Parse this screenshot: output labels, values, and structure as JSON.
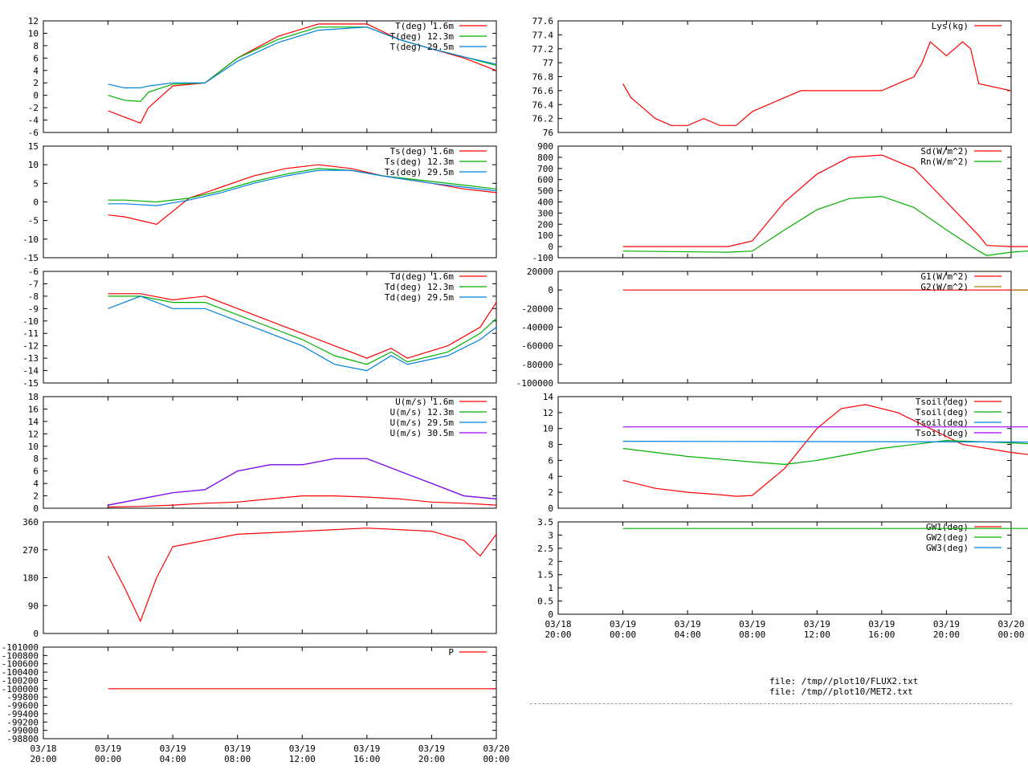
{
  "files": [
    "file: /tmp//plot10/FLUX2.txt",
    "file: /tmp//plot10/MET2.txt"
  ],
  "colors": {
    "red": "#ff0000",
    "green": "#00b000",
    "blue": "#0080e0",
    "purple": "#a000ff",
    "olive": "#a08000"
  },
  "xaxis": {
    "range": [
      "03/18 20:00",
      "03/20 00:00"
    ],
    "ticks": [
      [
        "03/18",
        "20:00"
      ],
      [
        "03/19",
        "00:00"
      ],
      [
        "03/19",
        "04:00"
      ],
      [
        "03/19",
        "08:00"
      ],
      [
        "03/19",
        "12:00"
      ],
      [
        "03/19",
        "16:00"
      ],
      [
        "03/19",
        "20:00"
      ],
      [
        "03/20",
        "00:00"
      ]
    ]
  },
  "chart_data": [
    {
      "type": "line",
      "title": "",
      "xlabel": "",
      "ylabel": "",
      "ylim": [
        -6,
        12
      ],
      "yticks": [
        "-6",
        "-4",
        "-2",
        "0",
        "2",
        "4",
        "6",
        "8",
        "10",
        "12"
      ],
      "legend": "top-right",
      "grid": false,
      "series": [
        {
          "name": "T(deg)  1.6m",
          "color": "#ff0000",
          "x": [
            4,
            5,
            6,
            6.5,
            8,
            10,
            12,
            14.5,
            17,
            20,
            22,
            24,
            26,
            28
          ],
          "y": [
            -2.5,
            -3.5,
            -4.5,
            -2,
            1.5,
            2,
            6,
            9.5,
            11.5,
            11.5,
            9,
            7.5,
            6,
            4
          ]
        },
        {
          "name": "T(deg) 12.3m",
          "color": "#00b000",
          "x": [
            4,
            5,
            6,
            6.5,
            8,
            10,
            12,
            14.5,
            17,
            20,
            22,
            24,
            26,
            28
          ],
          "y": [
            0,
            -0.8,
            -1,
            0.5,
            1.8,
            2,
            6,
            9,
            11,
            11,
            9,
            7.5,
            6.2,
            4.8
          ]
        },
        {
          "name": "T(deg) 29.5m",
          "color": "#0080e0",
          "x": [
            4,
            5,
            6,
            6.5,
            8,
            10,
            12,
            14.5,
            17,
            20,
            22,
            24,
            26,
            28
          ],
          "y": [
            1.8,
            1.2,
            1.2,
            1.5,
            2,
            2,
            5.5,
            8.5,
            10.5,
            11,
            9,
            7.5,
            6.2,
            5
          ]
        }
      ]
    },
    {
      "type": "line",
      "title": "",
      "xlabel": "",
      "ylabel": "",
      "ylim": [
        -15,
        15
      ],
      "yticks": [
        "-15",
        "-10",
        "-5",
        "0",
        "5",
        "10",
        "15"
      ],
      "legend": "top-right",
      "grid": false,
      "series": [
        {
          "name": "Ts(deg)  1.6m",
          "color": "#ff0000",
          "x": [
            4,
            5,
            7,
            9,
            11,
            13,
            15,
            17,
            19,
            21,
            24,
            26,
            28
          ],
          "y": [
            -3.5,
            -4,
            -6,
            1,
            4,
            7,
            9,
            10,
            9,
            7,
            5,
            3.5,
            2.5
          ]
        },
        {
          "name": "Ts(deg) 12.3m",
          "color": "#00b000",
          "x": [
            4,
            5,
            7,
            9,
            11,
            13,
            15,
            17,
            19,
            21,
            24,
            26,
            28
          ],
          "y": [
            0.5,
            0.5,
            0,
            1,
            3,
            5.5,
            7.5,
            9,
            8.5,
            7,
            5.5,
            4.5,
            3.5
          ]
        },
        {
          "name": "Ts(deg) 29.5m",
          "color": "#0080e0",
          "x": [
            4,
            5,
            7,
            9,
            11,
            13,
            15,
            17,
            19,
            21,
            24,
            26,
            28
          ],
          "y": [
            -0.5,
            -0.5,
            -1,
            0.5,
            2.5,
            5,
            7,
            8.5,
            8.5,
            7,
            5,
            4,
            3
          ]
        }
      ]
    },
    {
      "type": "line",
      "title": "",
      "xlabel": "",
      "ylabel": "",
      "ylim": [
        -15,
        -6
      ],
      "yticks": [
        "-15",
        "-14",
        "-13",
        "-12",
        "-11",
        "-10",
        "-9",
        "-8",
        "-7",
        "-6"
      ],
      "legend": "top-right",
      "grid": false,
      "series": [
        {
          "name": "Td(deg)  1.6m",
          "color": "#ff0000",
          "x": [
            4,
            6,
            8,
            10,
            12,
            14,
            16,
            18,
            20,
            21.5,
            22.5,
            25,
            27,
            28
          ],
          "y": [
            -7.8,
            -7.8,
            -8.3,
            -8,
            -9,
            -10,
            -11,
            -12,
            -13,
            -12.2,
            -13,
            -12,
            -10.5,
            -8.5
          ]
        },
        {
          "name": "Td(deg) 12.3m",
          "color": "#00b000",
          "x": [
            4,
            6,
            8,
            10,
            12,
            14,
            16,
            18,
            20,
            21.5,
            22.5,
            25,
            27,
            28
          ],
          "y": [
            -8,
            -8,
            -8.5,
            -8.5,
            -9.5,
            -10.5,
            -11.5,
            -12.8,
            -13.5,
            -12.5,
            -13.3,
            -12.5,
            -11,
            -9.8
          ]
        },
        {
          "name": "Td(deg) 29.5m",
          "color": "#0080e0",
          "x": [
            4,
            6,
            8,
            10,
            12,
            14,
            16,
            18,
            20,
            21.5,
            22.5,
            25,
            27,
            28
          ],
          "y": [
            -9,
            -8,
            -9,
            -9,
            -10,
            -11,
            -12,
            -13.5,
            -14,
            -12.8,
            -13.5,
            -12.8,
            -11.5,
            -10.5
          ]
        }
      ]
    },
    {
      "type": "line",
      "title": "",
      "xlabel": "",
      "ylabel": "",
      "ylim": [
        0,
        18
      ],
      "yticks": [
        "0",
        "2",
        "4",
        "6",
        "8",
        "10",
        "12",
        "14",
        "16",
        "18"
      ],
      "legend": "top-right",
      "grid": false,
      "series": [
        {
          "name": "U(m/s)  1.6m",
          "color": "#ff0000",
          "x": [
            4,
            6,
            8,
            10,
            12,
            14,
            16,
            18,
            20,
            22,
            24,
            26,
            28
          ],
          "y": [
            0.2,
            0.3,
            0.5,
            0.8,
            1,
            1.5,
            2,
            2,
            1.8,
            1.5,
            1,
            0.8,
            0.5
          ]
        },
        {
          "name": "U(m/s) 12.3m",
          "color": "#00b000",
          "x": [
            4,
            6,
            8,
            10,
            12,
            14,
            16,
            18,
            20,
            22,
            24,
            26,
            28
          ],
          "y": [
            0.5,
            1.5,
            2.5,
            3,
            6,
            7,
            7,
            8,
            8,
            6,
            4,
            2,
            1.5
          ]
        },
        {
          "name": "U(m/s) 29.5m",
          "color": "#0080e0",
          "x": [
            4,
            6,
            8,
            10,
            12,
            14,
            16,
            18,
            20,
            22,
            24,
            26,
            28
          ],
          "y": [
            0.5,
            1.5,
            2.5,
            3,
            6,
            7,
            7,
            8,
            8,
            6,
            4,
            2,
            1.5
          ]
        },
        {
          "name": "U(m/s) 30.5m",
          "color": "#a000ff",
          "x": [
            4,
            6,
            8,
            10,
            12,
            14,
            16,
            18,
            20,
            22,
            24,
            26,
            28
          ],
          "y": [
            0.5,
            1.5,
            2.5,
            3,
            6,
            7,
            7,
            8,
            8,
            6,
            4,
            2,
            1.5
          ]
        }
      ]
    },
    {
      "type": "line",
      "title": "",
      "xlabel": "",
      "ylabel": "",
      "ylim": [
        0,
        360
      ],
      "yticks": [
        "0",
        "90",
        "180",
        "270",
        "360"
      ],
      "legend": "none",
      "grid": false,
      "series": [
        {
          "name": "",
          "color": "#ff0000",
          "x": [
            4,
            5,
            6,
            7,
            8,
            10,
            12,
            16,
            20,
            24,
            26,
            27,
            28
          ],
          "y": [
            250,
            150,
            40,
            180,
            280,
            300,
            320,
            330,
            340,
            330,
            300,
            250,
            320
          ]
        }
      ]
    },
    {
      "type": "line",
      "title": "",
      "xlabel": "",
      "ylabel": "",
      "ylim": [
        -98800,
        -101000
      ],
      "yticks": [
        "-101000",
        "-100800",
        "-100600",
        "-100400",
        "-100200",
        "-100000",
        "-99800",
        "-99600",
        "-99400",
        "-99200",
        "-99000",
        "-98800"
      ],
      "legend": "top-right",
      "grid": false,
      "series": [
        {
          "name": "P",
          "color": "#ff0000",
          "x": [
            4,
            28
          ],
          "y": [
            -100000,
            -100000
          ]
        }
      ]
    },
    {
      "type": "line",
      "title": "",
      "xlabel": "",
      "ylabel": "",
      "ylim": [
        76,
        77.6
      ],
      "yticks": [
        "76",
        "76.2",
        "76.4",
        "76.6",
        "76.8",
        "77",
        "77.2",
        "77.4",
        "77.6"
      ],
      "legend": "top-right",
      "grid": false,
      "series": [
        {
          "name": "Lys(kg)",
          "color": "#ff0000",
          "x": [
            4,
            4.5,
            5,
            6,
            7,
            8,
            9,
            10,
            11,
            12,
            13,
            14,
            15,
            16,
            17,
            18,
            19,
            20,
            21,
            22,
            22.5,
            23,
            24,
            25,
            25.5,
            26,
            28
          ],
          "y": [
            76.7,
            76.5,
            76.4,
            76.2,
            76.1,
            76.1,
            76.2,
            76.1,
            76.1,
            76.3,
            76.4,
            76.5,
            76.6,
            76.6,
            76.6,
            76.6,
            76.6,
            76.6,
            76.7,
            76.8,
            77,
            77.3,
            77.1,
            77.3,
            77.2,
            76.7,
            76.6
          ]
        }
      ]
    },
    {
      "type": "line",
      "title": "",
      "xlabel": "",
      "ylabel": "",
      "ylim": [
        -100,
        900
      ],
      "yticks": [
        "-100",
        "0",
        "100",
        "200",
        "300",
        "400",
        "500",
        "600",
        "700",
        "800",
        "900"
      ],
      "legend": "top-right",
      "grid": false,
      "series": [
        {
          "name": "Sd(W/m^2)",
          "color": "#ff0000",
          "x": [
            4,
            10.5,
            12,
            14,
            16,
            18,
            20,
            22,
            24,
            26,
            26.5,
            28,
            32
          ],
          "y": [
            0,
            0,
            50,
            400,
            650,
            800,
            820,
            700,
            400,
            100,
            10,
            0,
            0
          ]
        },
        {
          "name": "Rn(W/m^2)",
          "color": "#00b000",
          "x": [
            4,
            10.5,
            12,
            14,
            16,
            18,
            20,
            22,
            24,
            26,
            26.5,
            28,
            32
          ],
          "y": [
            -40,
            -50,
            -40,
            150,
            330,
            430,
            450,
            350,
            150,
            -40,
            -80,
            -50,
            -10
          ]
        }
      ]
    },
    {
      "type": "line",
      "title": "",
      "xlabel": "",
      "ylabel": "",
      "ylim": [
        -100000,
        20000
      ],
      "yticks": [
        "-100000",
        "-80000",
        "-60000",
        "-40000",
        "-20000",
        "0",
        "20000"
      ],
      "legend": "top-right",
      "grid": false,
      "series": [
        {
          "name": "G1(W/m^2)",
          "color": "#ff0000",
          "x": [
            4,
            32
          ],
          "y": [
            0,
            0
          ]
        },
        {
          "name": "G2(W/m^2)",
          "color": "#a08000",
          "x": [
            28,
            32
          ],
          "y": [
            0,
            0
          ]
        }
      ]
    },
    {
      "type": "line",
      "title": "",
      "xlabel": "",
      "ylabel": "",
      "ylim": [
        0,
        14
      ],
      "yticks": [
        "0",
        "2",
        "4",
        "6",
        "8",
        "10",
        "12",
        "14"
      ],
      "legend": "top-right",
      "grid": false,
      "series": [
        {
          "name": "Tsoil(deg)",
          "color": "#ff0000",
          "x": [
            4,
            6,
            8,
            10,
            11,
            12,
            14,
            16,
            17.5,
            19,
            21,
            23,
            25,
            28,
            32
          ],
          "y": [
            3.5,
            2.5,
            2,
            1.7,
            1.5,
            1.6,
            5,
            10,
            12.5,
            13,
            12,
            10,
            8,
            7,
            6
          ]
        },
        {
          "name": "Tsoil(deg)",
          "color": "#00b000",
          "x": [
            4,
            8,
            12,
            14,
            16,
            20,
            24,
            28,
            32
          ],
          "y": [
            7.5,
            6.5,
            5.8,
            5.5,
            6,
            7.5,
            8.5,
            8.2,
            7.8
          ]
        },
        {
          "name": "Tsoil(deg)",
          "color": "#0080e0",
          "x": [
            4,
            32
          ],
          "y": [
            8.4,
            8.3
          ]
        },
        {
          "name": "Tsoil(deg)",
          "color": "#a000ff",
          "x": [
            4,
            32
          ],
          "y": [
            10.2,
            10.2
          ]
        }
      ]
    },
    {
      "type": "line",
      "title": "",
      "xlabel": "",
      "ylabel": "",
      "ylim": [
        0,
        3.5
      ],
      "yticks": [
        "0",
        "0.5",
        "1",
        "1.5",
        "2",
        "2.5",
        "3",
        "3.5"
      ],
      "legend": "top-right",
      "grid": false,
      "series": [
        {
          "name": "GW1(deg)",
          "color": "#ff0000",
          "x": [],
          "y": []
        },
        {
          "name": "GW2(deg)",
          "color": "#00b000",
          "x": [
            4,
            32
          ],
          "y": [
            3.25,
            3.25
          ]
        },
        {
          "name": "GW3(deg)",
          "color": "#0080e0",
          "x": [],
          "y": []
        }
      ]
    }
  ]
}
